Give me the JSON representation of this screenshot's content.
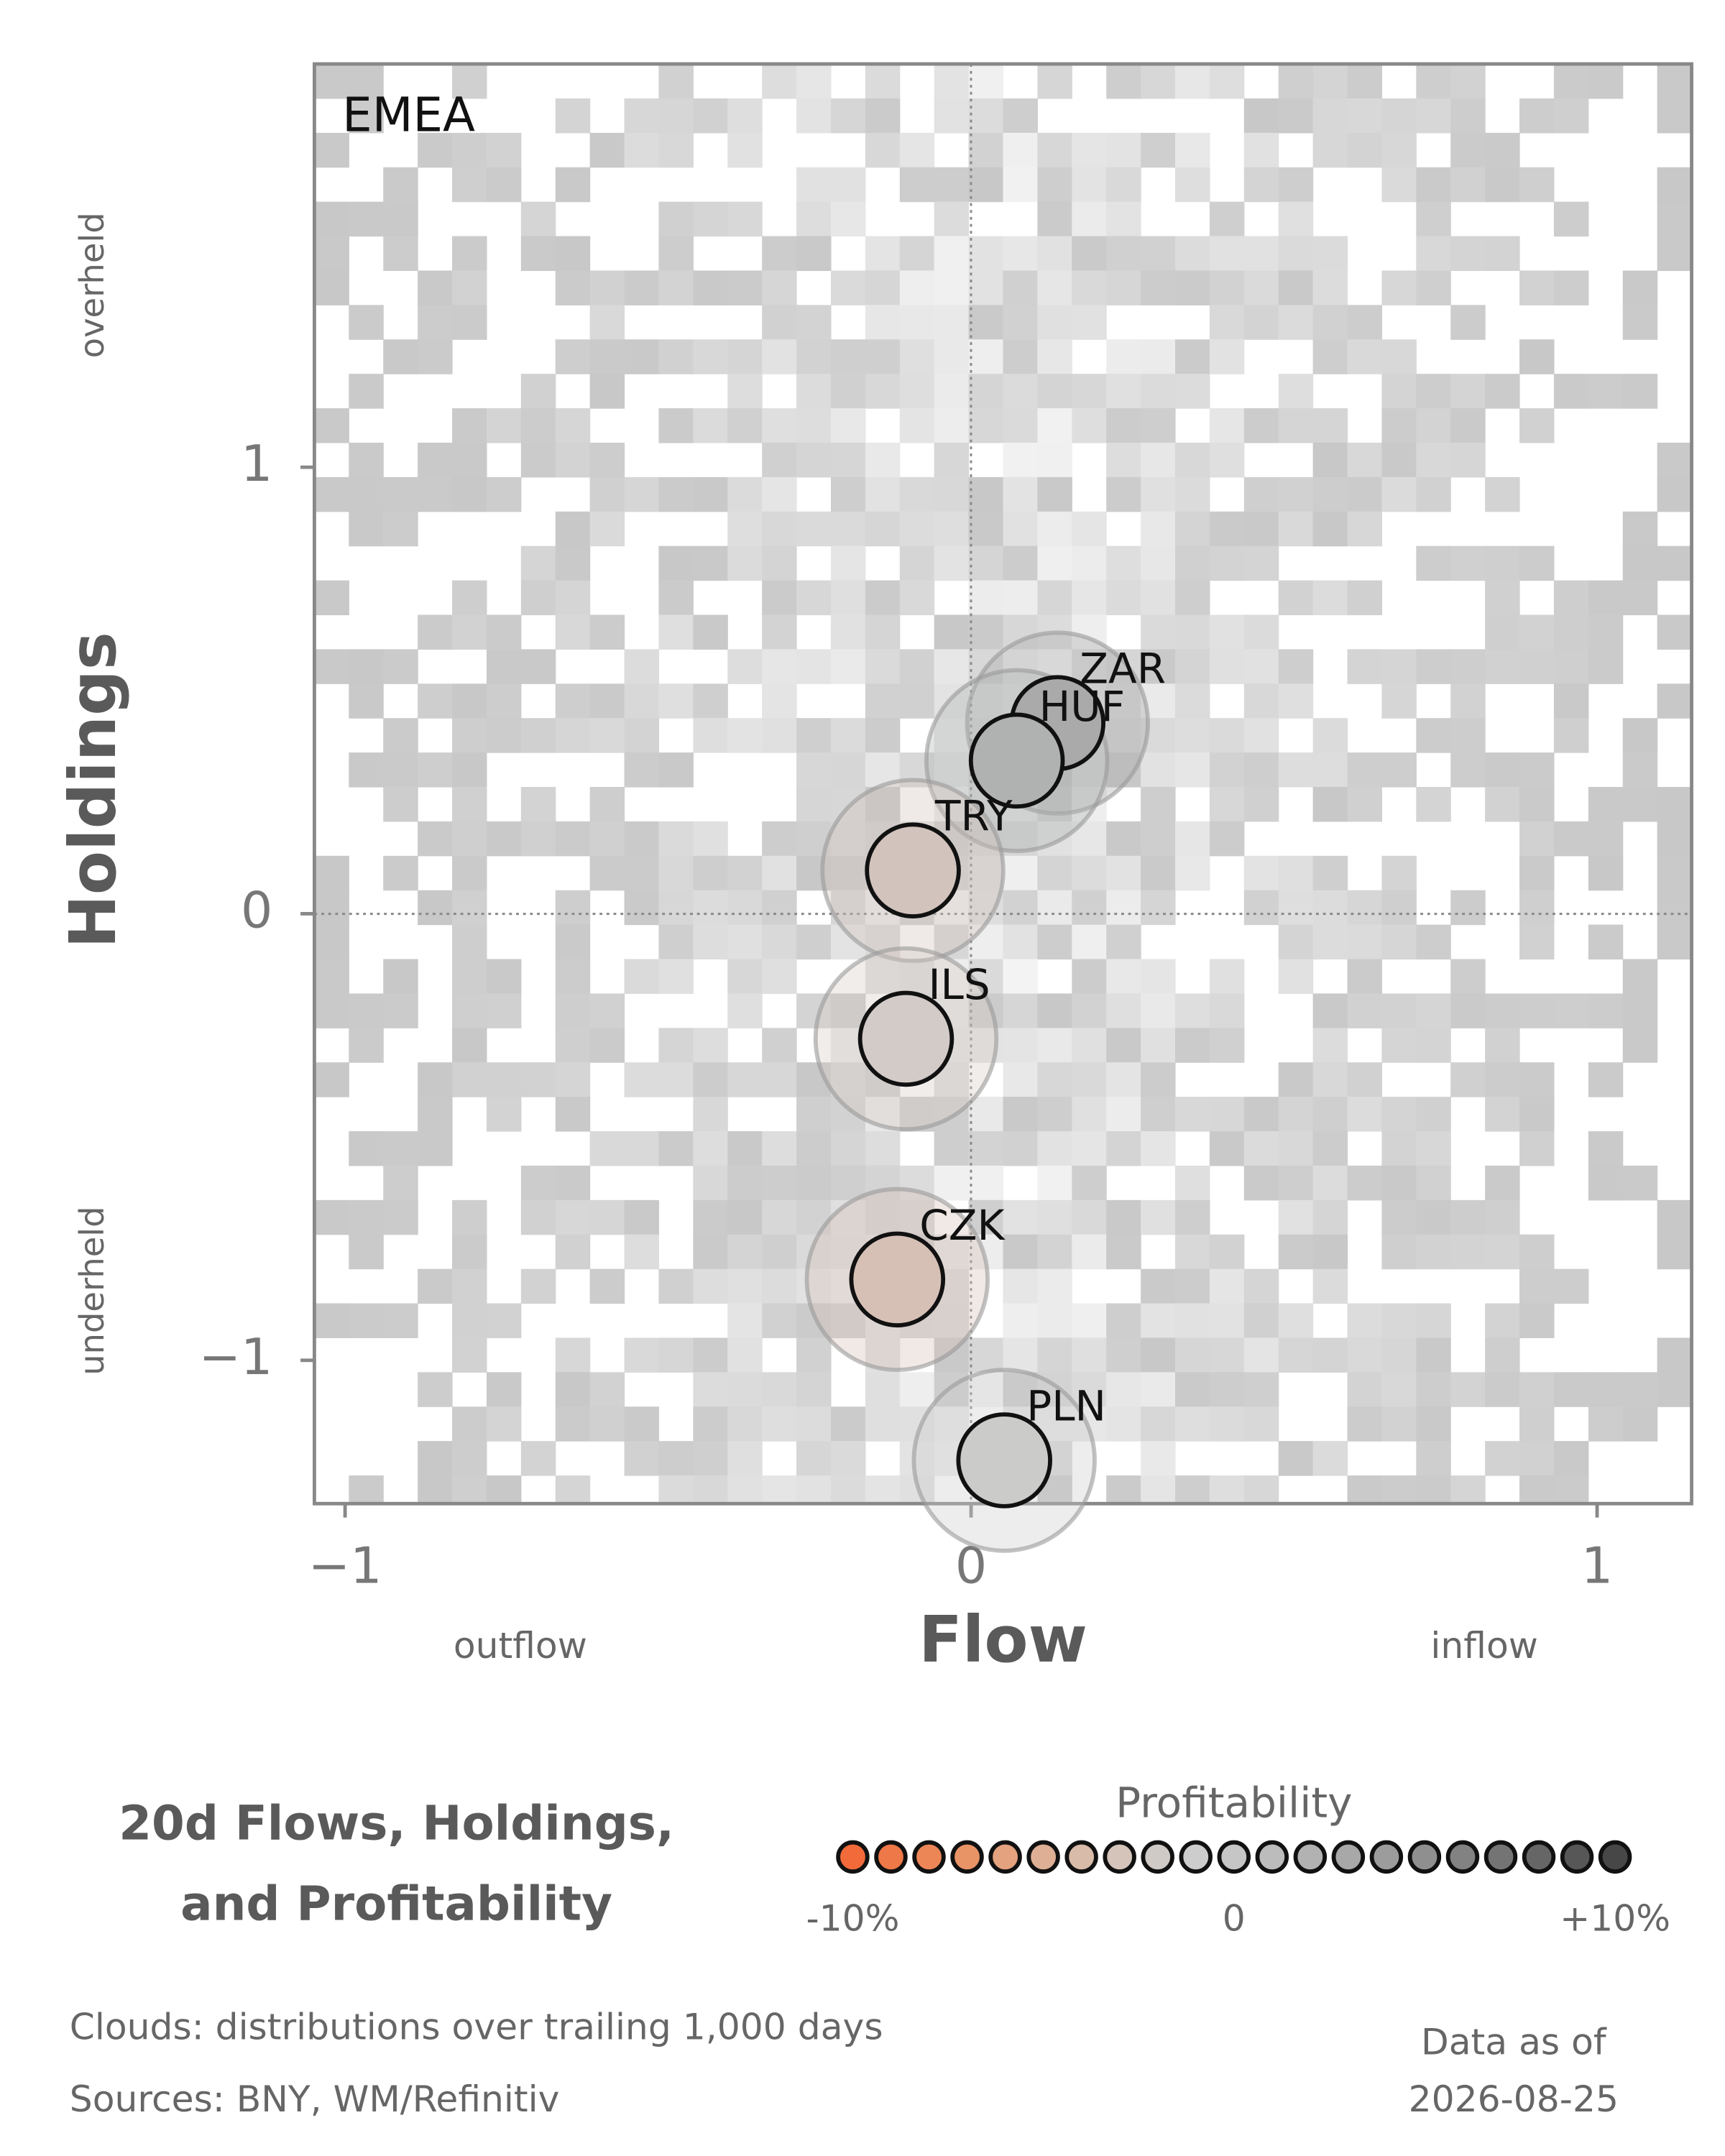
{
  "chart_data": {
    "type": "scatter",
    "panel_label": "EMEA",
    "x_label": "Flow",
    "y_label": "Holdings",
    "x_low_label": "outflow",
    "x_high_label": "inflow",
    "y_high_label": "overheld",
    "y_low_label": "underheld",
    "xlim": [
      -1.049,
      1.151
    ],
    "ylim": [
      -1.321,
      1.903
    ],
    "xticks": [
      {
        "value": -1,
        "label": "−1"
      },
      0,
      1
    ],
    "yticks": [
      {
        "value": -1,
        "label": "−1"
      },
      0,
      1
    ],
    "points": [
      {
        "name": "ZAR",
        "x": 0.138,
        "y": 0.427,
        "color": "#a9aaa9"
      },
      {
        "name": "HUF",
        "x": 0.073,
        "y": 0.343,
        "color": "#b0b2b1"
      },
      {
        "name": "TRY",
        "x": -0.093,
        "y": 0.097,
        "color": "#d2c3bd"
      },
      {
        "name": "ILS",
        "x": -0.104,
        "y": -0.28,
        "color": "#d3cbc7"
      },
      {
        "name": "CZK",
        "x": -0.118,
        "y": -0.819,
        "color": "#d6c0b6"
      },
      {
        "name": "PLN",
        "x": 0.053,
        "y": -1.224,
        "color": "#cbcbca"
      }
    ],
    "title_lines": [
      "20d Flows, Holdings,",
      "and Profitability"
    ],
    "colorbar": {
      "label": "Profitability",
      "lim": [
        -10,
        10
      ],
      "ticks": [
        {
          "value": -10,
          "label": "-10%"
        },
        0,
        {
          "value": 10,
          "label": "+10%"
        }
      ],
      "colors": [
        "#f26a3a",
        "#ef7848",
        "#ec8657",
        "#e89467",
        "#e4a27f",
        "#deaf95",
        "#d9bbaa",
        "#d4c4ba",
        "#d0cac6",
        "#cdcdcd",
        "#c6c6c6",
        "#bcbcbc",
        "#b2b2b2",
        "#a8a8a8",
        "#9c9c9c",
        "#8f8f8f",
        "#828282",
        "#747474",
        "#666666",
        "#575757",
        "#474747"
      ]
    },
    "footnotes": [
      "Clouds:  distributions over trailing 1,000 days",
      "Sources:  BNY, WM/Refinitiv"
    ],
    "asof_lines": [
      "Data as of",
      "2026-08-25"
    ]
  }
}
